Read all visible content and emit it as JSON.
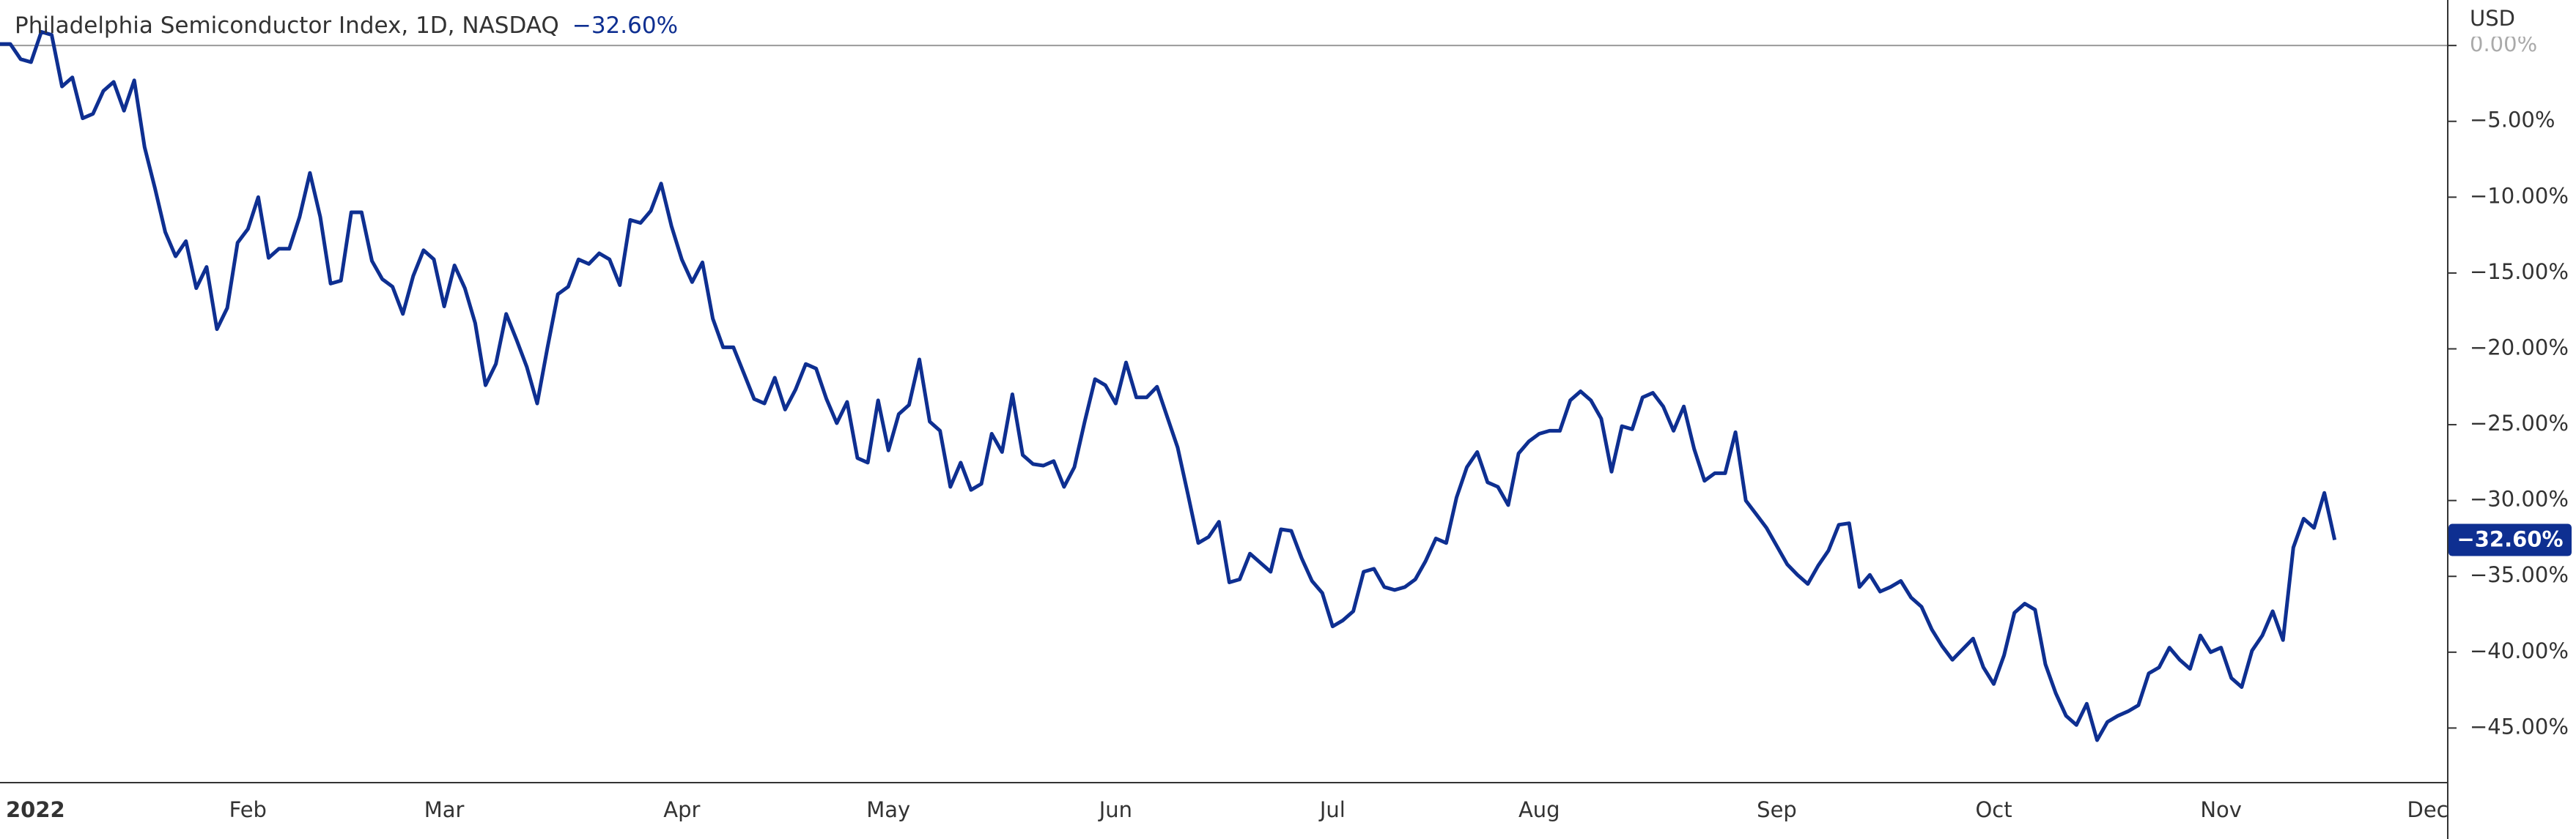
{
  "chart_data": {
    "type": "line",
    "title": "Philadelphia Semiconductor Index, 1D, NASDAQ",
    "last_value_label": "−32.60%",
    "y_axis_label": "USD",
    "color": "#0e2f91",
    "categories": [
      "2022",
      null,
      null,
      null,
      null,
      null,
      null,
      null,
      null,
      null,
      null,
      null,
      null,
      null,
      null,
      null,
      null,
      null,
      null,
      null,
      null,
      null,
      null,
      null,
      "Feb",
      null,
      null,
      null,
      null,
      null,
      null,
      null,
      null,
      null,
      null,
      null,
      null,
      null,
      null,
      null,
      null,
      null,
      null,
      "Mar",
      null,
      null,
      null,
      null,
      null,
      null,
      null,
      null,
      null,
      null,
      null,
      null,
      null,
      null,
      null,
      null,
      null,
      null,
      null,
      null,
      null,
      null,
      "Apr",
      null,
      null,
      null,
      null,
      null,
      null,
      null,
      null,
      null,
      null,
      null,
      null,
      null,
      null,
      null,
      null,
      null,
      null,
      null,
      "May",
      null,
      null,
      null,
      null,
      null,
      null,
      null,
      null,
      null,
      null,
      null,
      null,
      null,
      null,
      null,
      null,
      null,
      null,
      null,
      null,
      null,
      "Jun",
      null,
      null,
      null,
      null,
      null,
      null,
      null,
      null,
      null,
      null,
      null,
      null,
      null,
      null,
      null,
      null,
      null,
      null,
      null,
      null,
      "Jul",
      null,
      null,
      null,
      null,
      null,
      null,
      null,
      null,
      null,
      null,
      null,
      null,
      null,
      null,
      null,
      null,
      null,
      null,
      null,
      "Aug",
      null,
      null,
      null,
      null,
      null,
      null,
      null,
      null,
      null,
      null,
      null,
      null,
      null,
      null,
      null,
      null,
      null,
      null,
      null,
      null,
      null,
      null,
      "Sep",
      null,
      null,
      null,
      null,
      null,
      null,
      null,
      null,
      null,
      null,
      null,
      null,
      null,
      null,
      null,
      null,
      null,
      null,
      null,
      null,
      "Oct",
      null,
      null,
      null,
      null,
      null,
      null,
      null,
      null,
      null,
      null,
      null,
      null,
      null,
      null,
      null,
      null,
      null,
      null,
      null,
      null,
      null,
      "Nov",
      null,
      null,
      null,
      null,
      null,
      null,
      null,
      null,
      null,
      null,
      null,
      null,
      null,
      null,
      null,
      null,
      null,
      null,
      null,
      "Dec"
    ],
    "values": [
      0.1,
      0.1,
      -0.9,
      -1.1,
      0.9,
      0.7,
      -2.7,
      -2.1,
      -4.8,
      -4.5,
      -3.0,
      -2.4,
      -4.3,
      -2.3,
      -6.7,
      -9.4,
      -12.3,
      -13.9,
      -12.9,
      -16.0,
      -14.6,
      -18.7,
      -17.3,
      -13.0,
      -12.1,
      -10.0,
      -14.0,
      -13.4,
      -13.4,
      -11.3,
      -8.4,
      -11.3,
      -15.7,
      -15.5,
      -11.0,
      -11.0,
      -14.2,
      -15.4,
      -15.9,
      -17.7,
      -15.2,
      -13.5,
      -14.1,
      -17.2,
      -14.5,
      -16.0,
      -18.3,
      -22.4,
      -21.0,
      -17.7,
      -19.4,
      -21.2,
      -23.6,
      -19.9,
      -16.4,
      -15.9,
      -14.1,
      -14.4,
      -13.7,
      -14.1,
      -15.8,
      -11.5,
      -11.7,
      -10.9,
      -9.1,
      -11.9,
      -14.1,
      -15.6,
      -14.3,
      -18.0,
      -19.9,
      -19.9,
      -21.6,
      -23.3,
      -23.6,
      -21.9,
      -24.0,
      -22.7,
      -21.0,
      -21.3,
      -23.3,
      -24.9,
      -23.5,
      -27.2,
      -27.5,
      -23.4,
      -26.7,
      -24.3,
      -23.7,
      -20.7,
      -24.8,
      -25.4,
      -29.1,
      -27.5,
      -29.3,
      -28.9,
      -25.6,
      -26.8,
      -23.0,
      -27.0,
      -27.6,
      -27.7,
      -27.4,
      -29.1,
      -27.8,
      -24.8,
      -22.0,
      -22.4,
      -23.6,
      -20.9,
      -23.2,
      -23.2,
      -22.5,
      -24.5,
      -26.5,
      -29.6,
      -32.8,
      -32.4,
      -31.4,
      -35.4,
      -35.2,
      -33.5,
      -34.1,
      -34.7,
      -31.9,
      -32.0,
      -33.8,
      -35.3,
      -36.1,
      -38.3,
      -37.9,
      -37.3,
      -34.7,
      -34.5,
      -35.7,
      -35.9,
      -35.7,
      -35.2,
      -34.0,
      -32.5,
      -32.8,
      -29.8,
      -27.8,
      -26.8,
      -28.8,
      -29.1,
      -30.3,
      -26.9,
      -26.1,
      -25.6,
      -25.4,
      -25.4,
      -23.4,
      -22.8,
      -23.4,
      -24.6,
      -28.1,
      -25.1,
      -25.3,
      -23.2,
      -22.9,
      -23.8,
      -25.4,
      -23.8,
      -26.6,
      -28.7,
      -28.2,
      -28.2,
      -25.5,
      -30.0,
      -30.9,
      -31.8,
      -33.0,
      -34.2,
      -34.9,
      -35.5,
      -34.3,
      -33.3,
      -31.6,
      -31.5,
      -35.7,
      -34.9,
      -36.0,
      -35.7,
      -35.3,
      -36.4,
      -37.0,
      -38.5,
      -39.6,
      -40.5,
      -39.8,
      -39.1,
      -41.0,
      -42.1,
      -40.2,
      -37.4,
      -36.8,
      -37.2,
      -40.8,
      -42.7,
      -44.2,
      -44.8,
      -43.4,
      -45.8,
      -44.6,
      -44.2,
      -43.9,
      -43.5,
      -41.4,
      -41.0,
      -39.7,
      -40.5,
      -41.1,
      -38.9,
      -40.0,
      -39.7,
      -41.7,
      -42.3,
      -39.9,
      -38.9,
      -37.3,
      -39.2,
      -33.1,
      -31.2,
      -31.8,
      -29.5,
      -32.6,
      null,
      null,
      null,
      null,
      null,
      null,
      null,
      null,
      null
    ],
    "ylim": [
      -48.6,
      3.0
    ],
    "yticks": [
      {
        "value": 0,
        "label": "0.00%"
      },
      {
        "value": -5,
        "label": "−5.00%"
      },
      {
        "value": -10,
        "label": "−10.00%"
      },
      {
        "value": -15,
        "label": "−15.00%"
      },
      {
        "value": -20,
        "label": "−20.00%"
      },
      {
        "value": -25,
        "label": "−25.00%"
      },
      {
        "value": -30,
        "label": "−30.00%"
      },
      {
        "value": -35,
        "label": "−35.00%"
      },
      {
        "value": -40,
        "label": "−40.00%"
      },
      {
        "value": -45,
        "label": "−45.00%"
      }
    ],
    "grid": false
  }
}
